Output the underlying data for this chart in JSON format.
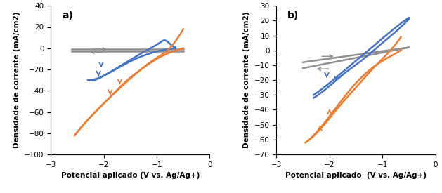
{
  "panel_a": {
    "label": "a)",
    "ylim": [
      -100,
      40
    ],
    "yticks": [
      -100,
      -80,
      -60,
      -40,
      -20,
      0,
      20,
      40
    ],
    "xlim": [
      -3,
      0
    ],
    "xticks": [
      -3,
      -2,
      -1,
      0
    ],
    "ylabel": "Densidade de corrente (mA/cm2)",
    "xlabel": "Potencial aplicado (V vs. Ag/Ag+)"
  },
  "panel_b": {
    "label": "b)",
    "ylim": [
      -70,
      30
    ],
    "yticks": [
      -70,
      -60,
      -50,
      -40,
      -30,
      -20,
      -10,
      0,
      10,
      20,
      30
    ],
    "xlim": [
      -3,
      0
    ],
    "xticks": [
      -3,
      -2,
      -1,
      0
    ],
    "ylabel": "Densidade de corrente (mA/cm2)",
    "xlabel": "Potencial aplicado  (V vs. Ag/Ag+)"
  },
  "colors": {
    "blue": "#4472C4",
    "orange": "#ED7D31",
    "gray": "#909090"
  },
  "line_width": 1.8
}
